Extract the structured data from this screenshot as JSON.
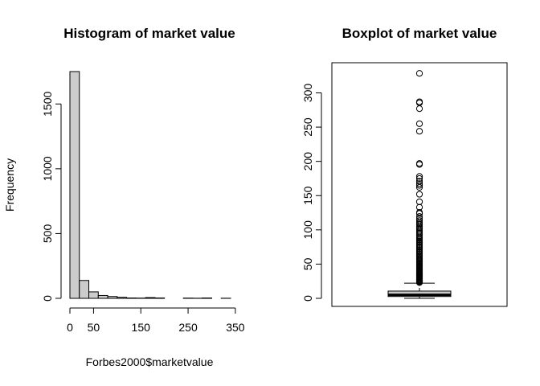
{
  "chart_data": [
    {
      "type": "bar",
      "subtype": "histogram",
      "title": "Histogram of market value",
      "xlabel": "Forbes2000$marketvalue",
      "ylabel": "Frequency",
      "bin_width": 20,
      "bins": [
        {
          "x0": 0,
          "x1": 20,
          "count": 1750
        },
        {
          "x0": 20,
          "x1": 40,
          "count": 138
        },
        {
          "x0": 40,
          "x1": 60,
          "count": 50
        },
        {
          "x0": 60,
          "x1": 80,
          "count": 22
        },
        {
          "x0": 80,
          "x1": 100,
          "count": 14
        },
        {
          "x0": 100,
          "x1": 120,
          "count": 8
        },
        {
          "x0": 120,
          "x1": 140,
          "count": 3
        },
        {
          "x0": 140,
          "x1": 160,
          "count": 2
        },
        {
          "x0": 160,
          "x1": 180,
          "count": 6
        },
        {
          "x0": 180,
          "x1": 200,
          "count": 3
        },
        {
          "x0": 200,
          "x1": 220,
          "count": 0
        },
        {
          "x0": 220,
          "x1": 240,
          "count": 0
        },
        {
          "x0": 240,
          "x1": 260,
          "count": 2
        },
        {
          "x0": 260,
          "x1": 280,
          "count": 1
        },
        {
          "x0": 280,
          "x1": 300,
          "count": 3
        },
        {
          "x0": 300,
          "x1": 320,
          "count": 0
        },
        {
          "x0": 320,
          "x1": 340,
          "count": 1
        }
      ],
      "xlim": [
        0,
        340
      ],
      "ylim": [
        0,
        1750
      ],
      "x_ticks": [
        0,
        50,
        150,
        250,
        350
      ],
      "y_ticks": [
        0,
        500,
        1000,
        1500
      ],
      "bar_color": "#cccccc",
      "grid": false
    },
    {
      "type": "boxplot",
      "title": "Boxplot of market value",
      "ylim": [
        0,
        330
      ],
      "y_ticks": [
        0,
        50,
        100,
        150,
        200,
        250,
        300
      ],
      "stats": {
        "min": 0.02,
        "q1": 2.7,
        "median": 5.1,
        "q3": 10.6,
        "whisker_high": 22.2
      },
      "outliers": [
        328.5,
        287.0,
        285.5,
        277.0,
        255.0,
        244.0,
        197.0,
        195.5,
        178.0,
        175.0,
        171.0,
        167.5,
        165.0,
        162.0,
        152.0,
        141.0,
        133.0,
        125.5,
        124.0,
        119.5,
        116.0,
        113.5,
        111.0,
        109.0,
        107.5,
        105.0,
        103.0,
        101.5,
        99.0,
        97.0,
        95.5,
        93.5,
        91.0,
        89.0,
        87.5,
        85.5,
        83.5,
        82.0,
        80.0,
        78.0,
        76.0,
        74.5,
        72.5,
        70.5,
        68.5,
        67.0,
        65.0,
        63.0,
        61.5,
        60.0,
        58.0,
        56.5,
        55.0,
        53.5,
        52.0,
        50.5,
        49.0,
        47.5,
        46.0,
        44.5,
        43.0,
        41.5,
        40.0,
        38.5,
        37.0,
        36.0,
        35.0,
        34.0,
        33.0,
        32.0,
        31.0,
        30.0,
        29.0,
        28.0,
        27.0,
        26.0,
        25.0,
        24.0,
        23.0
      ],
      "box_color": "#cccccc",
      "grid": false
    }
  ]
}
